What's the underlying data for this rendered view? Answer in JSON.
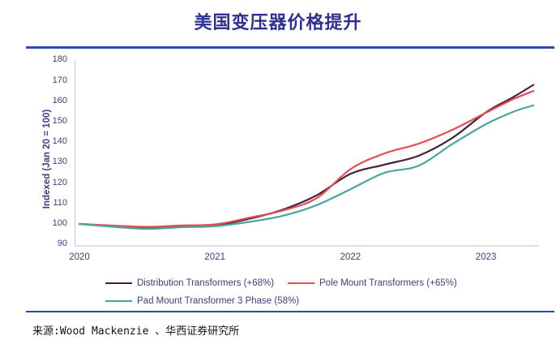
{
  "title": "美国变压器价格提升",
  "source": "来源:Wood Mackenzie 、华西证券研究所",
  "colors": {
    "title_text": "#2E3192",
    "divider": "#2F4BA8",
    "axis_text": "#39417F",
    "axis_line": "#C9CCD6",
    "source_text": "#141414"
  },
  "chart_data": {
    "type": "line",
    "title": "美国变压器价格提升",
    "xlabel": "",
    "ylabel": "Indexed (Jan 20 = 100)",
    "ylim": [
      90,
      180
    ],
    "y_ticks": [
      90,
      100,
      110,
      120,
      130,
      140,
      150,
      160,
      170,
      180
    ],
    "x_unit_note": "x = years since Jan 2020, data runs Jan 2020 to ~May 2023",
    "x_ticks": [
      {
        "t": 0,
        "label": "2020"
      },
      {
        "t": 1,
        "label": "2021"
      },
      {
        "t": 2,
        "label": "2022"
      },
      {
        "t": 3,
        "label": "2023"
      }
    ],
    "grid": false,
    "legend_position": "bottom",
    "series": [
      {
        "name": "Distribution Transformers (+68%)",
        "color": "#45203F",
        "points": [
          [
            0,
            100
          ],
          [
            0.25,
            99.0
          ],
          [
            0.5,
            98.4
          ],
          [
            0.75,
            98.8
          ],
          [
            1.0,
            99.3
          ],
          [
            1.25,
            102.5
          ],
          [
            1.5,
            107.0
          ],
          [
            1.75,
            114.0
          ],
          [
            2.0,
            124.5
          ],
          [
            2.25,
            129.0
          ],
          [
            2.5,
            133.3
          ],
          [
            2.75,
            142.0
          ],
          [
            3.0,
            154.6
          ],
          [
            3.2,
            162.0
          ],
          [
            3.35,
            168.0
          ]
        ]
      },
      {
        "name": "Pole Mount Transformers (+65%)",
        "color": "#E64E52",
        "points": [
          [
            0,
            100
          ],
          [
            0.25,
            99.2
          ],
          [
            0.5,
            98.6
          ],
          [
            0.75,
            99.3
          ],
          [
            1.0,
            99.8
          ],
          [
            1.25,
            103.0
          ],
          [
            1.5,
            106.6
          ],
          [
            1.75,
            112.6
          ],
          [
            2.0,
            126.8
          ],
          [
            2.25,
            134.5
          ],
          [
            2.5,
            139.2
          ],
          [
            2.75,
            146.0
          ],
          [
            3.0,
            154.4
          ],
          [
            3.2,
            161.0
          ],
          [
            3.35,
            165.0
          ]
        ]
      },
      {
        "name": "Pad Mount Transformer 3 Phase (58%)",
        "color": "#49A5A0",
        "points": [
          [
            0,
            100
          ],
          [
            0.25,
            98.6
          ],
          [
            0.5,
            97.6
          ],
          [
            0.75,
            98.4
          ],
          [
            1.0,
            98.9
          ],
          [
            1.25,
            101.0
          ],
          [
            1.5,
            104.0
          ],
          [
            1.75,
            109.2
          ],
          [
            2.0,
            117.0
          ],
          [
            2.25,
            125.0
          ],
          [
            2.5,
            128.4
          ],
          [
            2.75,
            139.0
          ],
          [
            3.0,
            148.8
          ],
          [
            3.2,
            154.8
          ],
          [
            3.35,
            158.0
          ]
        ]
      }
    ]
  }
}
